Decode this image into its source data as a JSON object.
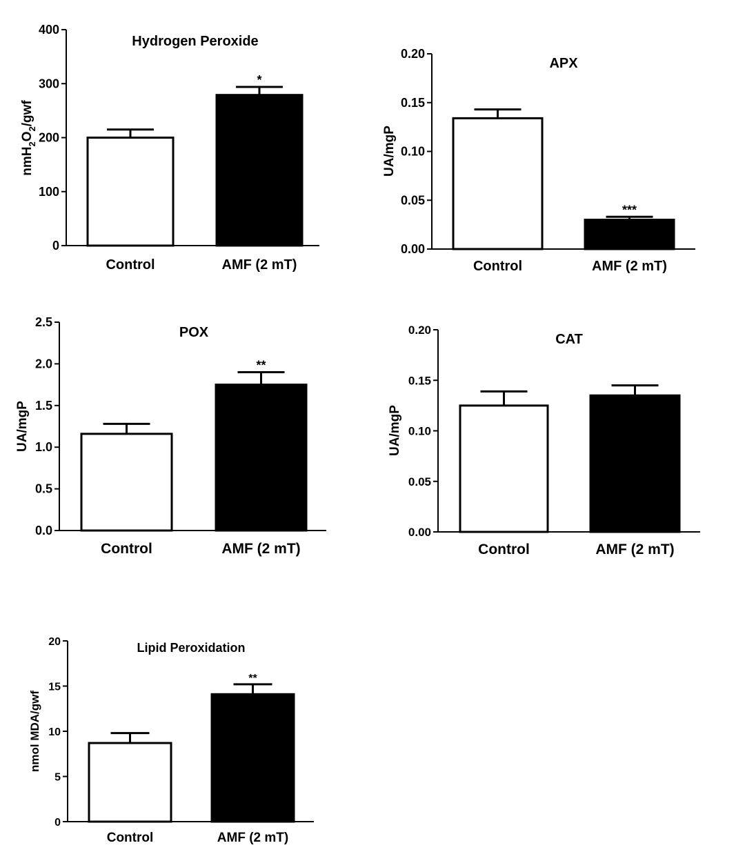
{
  "chart_data": [
    {
      "type": "bar",
      "title": "Hydrogen Peroxide",
      "ylabel": "nmH2O2/gwf",
      "ylabel_parts": {
        "a": "nmH",
        "sub1": "2",
        "b": "O",
        "sub2": "2",
        "c": "/gwf"
      },
      "xlabel": "",
      "ylim": [
        0,
        400
      ],
      "yticks": [
        0,
        100,
        200,
        300,
        400
      ],
      "ytick_labels": [
        "0",
        "100",
        "200",
        "300",
        "400"
      ],
      "categories": [
        "Control",
        "AMF (2 mT)"
      ],
      "values": [
        200,
        279
      ],
      "errors": [
        15,
        15
      ],
      "significance": [
        "",
        "*"
      ],
      "fill": [
        "#ffffff",
        "#000000"
      ]
    },
    {
      "type": "bar",
      "title": "APX",
      "ylabel": "UA/mgP",
      "xlabel": "",
      "ylim": [
        0,
        0.2
      ],
      "yticks": [
        0,
        0.05,
        0.1,
        0.15,
        0.2
      ],
      "ytick_labels": [
        "0.00",
        "0.05",
        "0.10",
        "0.15",
        "0.20"
      ],
      "categories": [
        "Control",
        "AMF (2 mT)"
      ],
      "values": [
        0.134,
        0.03
      ],
      "errors": [
        0.009,
        0.003
      ],
      "significance": [
        "",
        "***"
      ],
      "fill": [
        "#ffffff",
        "#000000"
      ]
    },
    {
      "type": "bar",
      "title": "POX",
      "ylabel": "UA/mgP",
      "xlabel": "",
      "ylim": [
        0,
        2.5
      ],
      "yticks": [
        0,
        0.5,
        1,
        1.5,
        2,
        2.5
      ],
      "ytick_labels": [
        "0.0",
        "0.5",
        "1.0",
        "1.5",
        "2.0",
        "2.5"
      ],
      "categories": [
        "Control",
        "AMF (2 mT)"
      ],
      "values": [
        1.16,
        1.75
      ],
      "errors": [
        0.12,
        0.15
      ],
      "significance": [
        "",
        "**"
      ],
      "fill": [
        "#ffffff",
        "#000000"
      ]
    },
    {
      "type": "bar",
      "title": "CAT",
      "ylabel": "UA/mgP",
      "xlabel": "",
      "ylim": [
        0,
        0.2
      ],
      "yticks": [
        0,
        0.05,
        0.1,
        0.15,
        0.2
      ],
      "ytick_labels": [
        "0.00",
        "0.05",
        "0.10",
        "0.15",
        "0.20"
      ],
      "categories": [
        "Control",
        "AMF (2 mT)"
      ],
      "values": [
        0.125,
        0.135
      ],
      "errors": [
        0.014,
        0.01
      ],
      "significance": [
        "",
        ""
      ],
      "fill": [
        "#ffffff",
        "#000000"
      ]
    },
    {
      "type": "bar",
      "title": "Lipid Peroxidation",
      "ylabel": "nmol MDA/gwf",
      "xlabel": "",
      "ylim": [
        0,
        20
      ],
      "yticks": [
        0,
        5,
        10,
        15,
        20
      ],
      "ytick_labels": [
        "0",
        "5",
        "10",
        "15",
        "20"
      ],
      "categories": [
        "Control",
        "AMF (2 mT)"
      ],
      "values": [
        8.7,
        14.1
      ],
      "errors": [
        1.1,
        1.1
      ],
      "significance": [
        "",
        "**"
      ],
      "fill": [
        "#ffffff",
        "#000000"
      ]
    }
  ]
}
